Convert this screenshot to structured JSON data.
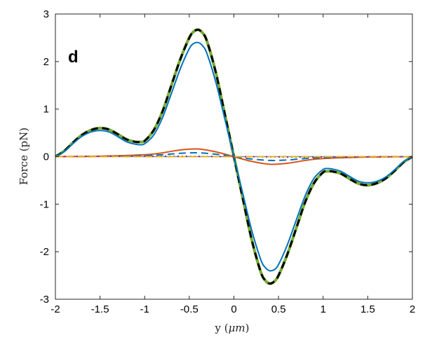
{
  "chart_data": {
    "type": "line",
    "title": "",
    "panel_label": "d",
    "xlabel": "y",
    "xlabel_unit": "μm",
    "ylabel": "Force (pN)",
    "xlim": [
      -2,
      2
    ],
    "ylim": [
      -3,
      3
    ],
    "xticks": [
      -2,
      -1.5,
      -1,
      -0.5,
      0,
      0.5,
      1,
      1.5,
      2
    ],
    "xtick_labels": [
      "-2",
      "-1.5",
      "-1",
      "-0.5",
      "0",
      "0.5",
      "1",
      "1.5",
      "2"
    ],
    "yticks": [
      -3,
      -2,
      -1,
      0,
      1,
      2,
      3
    ],
    "ytick_labels": [
      "-3",
      "-2",
      "-1",
      "0",
      "1",
      "2",
      "3"
    ],
    "grid": false,
    "legend": "none",
    "series": [
      {
        "color": "#77ac30",
        "style": "solid",
        "width": 4,
        "x": [
          -2,
          -1.9,
          -1.8,
          -1.7,
          -1.6,
          -1.5,
          -1.4,
          -1.3,
          -1.2,
          -1.1,
          -1.05,
          -1.0,
          -0.9,
          -0.8,
          -0.7,
          -0.6,
          -0.5,
          -0.45,
          -0.4,
          -0.35,
          -0.3,
          -0.2,
          -0.1,
          0,
          0.1,
          0.2,
          0.3,
          0.35,
          0.4,
          0.45,
          0.5,
          0.6,
          0.7,
          0.8,
          0.9,
          1.0,
          1.05,
          1.1,
          1.2,
          1.3,
          1.4,
          1.5,
          1.6,
          1.7,
          1.8,
          1.9,
          2
        ],
        "y": [
          0,
          0.12,
          0.3,
          0.46,
          0.56,
          0.6,
          0.57,
          0.47,
          0.36,
          0.31,
          0.31,
          0.33,
          0.55,
          0.95,
          1.5,
          2.05,
          2.5,
          2.63,
          2.67,
          2.6,
          2.42,
          1.75,
          0.88,
          0,
          -0.88,
          -1.75,
          -2.42,
          -2.6,
          -2.67,
          -2.63,
          -2.5,
          -2.05,
          -1.5,
          -0.95,
          -0.55,
          -0.33,
          -0.31,
          -0.31,
          -0.36,
          -0.47,
          -0.57,
          -0.6,
          -0.56,
          -0.46,
          -0.3,
          -0.12,
          0
        ]
      },
      {
        "color": "#000000",
        "style": "dashed",
        "width": 3,
        "x": [
          -2,
          -1.9,
          -1.8,
          -1.7,
          -1.6,
          -1.5,
          -1.4,
          -1.3,
          -1.2,
          -1.1,
          -1.05,
          -1.0,
          -0.9,
          -0.8,
          -0.7,
          -0.6,
          -0.5,
          -0.45,
          -0.4,
          -0.35,
          -0.3,
          -0.2,
          -0.1,
          0,
          0.1,
          0.2,
          0.3,
          0.35,
          0.4,
          0.45,
          0.5,
          0.6,
          0.7,
          0.8,
          0.9,
          1.0,
          1.05,
          1.1,
          1.2,
          1.3,
          1.4,
          1.5,
          1.6,
          1.7,
          1.8,
          1.9,
          2
        ],
        "y": [
          0,
          0.12,
          0.3,
          0.46,
          0.56,
          0.6,
          0.57,
          0.47,
          0.36,
          0.31,
          0.31,
          0.33,
          0.55,
          0.95,
          1.5,
          2.05,
          2.5,
          2.63,
          2.67,
          2.6,
          2.42,
          1.75,
          0.88,
          0,
          -0.88,
          -1.75,
          -2.42,
          -2.6,
          -2.67,
          -2.63,
          -2.5,
          -2.05,
          -1.5,
          -0.95,
          -0.55,
          -0.33,
          -0.31,
          -0.31,
          -0.36,
          -0.47,
          -0.57,
          -0.6,
          -0.56,
          -0.46,
          -0.3,
          -0.12,
          0
        ]
      },
      {
        "color": "#0072bd",
        "style": "solid",
        "width": 2,
        "x": [
          -2,
          -1.9,
          -1.8,
          -1.7,
          -1.6,
          -1.5,
          -1.4,
          -1.3,
          -1.2,
          -1.1,
          -1.05,
          -1.0,
          -0.9,
          -0.8,
          -0.7,
          -0.6,
          -0.5,
          -0.45,
          -0.4,
          -0.35,
          -0.3,
          -0.2,
          -0.1,
          0,
          0.1,
          0.2,
          0.3,
          0.35,
          0.4,
          0.45,
          0.5,
          0.6,
          0.7,
          0.8,
          0.9,
          1.0,
          1.05,
          1.1,
          1.2,
          1.3,
          1.4,
          1.5,
          1.6,
          1.7,
          1.8,
          1.9,
          2
        ],
        "y": [
          0,
          0.11,
          0.28,
          0.43,
          0.52,
          0.55,
          0.52,
          0.42,
          0.31,
          0.26,
          0.25,
          0.27,
          0.45,
          0.82,
          1.33,
          1.85,
          2.27,
          2.38,
          2.4,
          2.33,
          2.16,
          1.55,
          0.78,
          0,
          -0.78,
          -1.55,
          -2.16,
          -2.33,
          -2.4,
          -2.38,
          -2.27,
          -1.85,
          -1.33,
          -0.82,
          -0.45,
          -0.27,
          -0.25,
          -0.26,
          -0.31,
          -0.42,
          -0.52,
          -0.55,
          -0.52,
          -0.43,
          -0.28,
          -0.11,
          0
        ]
      },
      {
        "color": "#d95319",
        "style": "solid",
        "width": 2,
        "x": [
          -2,
          -1.5,
          -1.0,
          -0.8,
          -0.6,
          -0.4,
          -0.2,
          0,
          0.2,
          0.4,
          0.6,
          0.8,
          1.0,
          1.5,
          2
        ],
        "y": [
          0,
          0.01,
          0.04,
          0.08,
          0.14,
          0.16,
          0.1,
          0,
          -0.1,
          -0.16,
          -0.14,
          -0.08,
          -0.04,
          -0.01,
          0
        ]
      },
      {
        "color": "#0072bd",
        "style": "dashed",
        "width": 2,
        "x": [
          -2,
          -1.5,
          -1.0,
          -0.8,
          -0.6,
          -0.4,
          -0.2,
          0,
          0.2,
          0.4,
          0.6,
          0.8,
          1.0,
          1.5,
          2
        ],
        "y": [
          0,
          0.0,
          0.02,
          0.04,
          0.07,
          0.08,
          0.05,
          0,
          -0.05,
          -0.08,
          -0.07,
          -0.04,
          -0.02,
          0.0,
          0
        ]
      },
      {
        "color": "#7e2f8e",
        "style": "dotted",
        "width": 2,
        "x": [
          -2,
          -1,
          0,
          1,
          2
        ],
        "y": [
          0,
          0.01,
          0,
          -0.01,
          0
        ]
      },
      {
        "color": "#edb120",
        "style": "dashed",
        "width": 2,
        "x": [
          -2,
          -1,
          0,
          1,
          2
        ],
        "y": [
          0,
          0.0,
          0,
          0.0,
          0
        ]
      }
    ]
  }
}
